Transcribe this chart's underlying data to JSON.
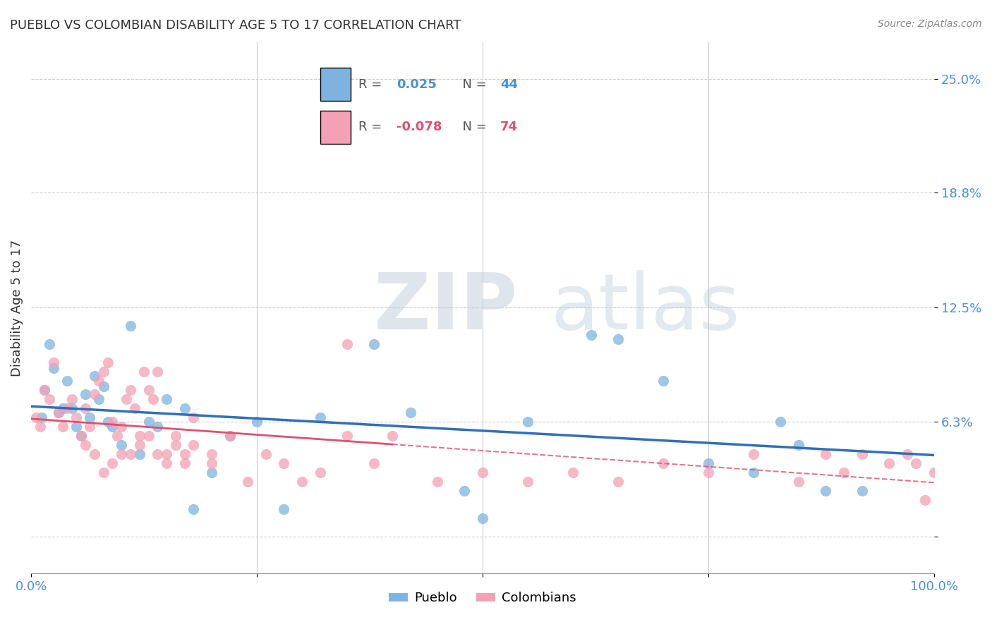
{
  "title": "PUEBLO VS COLOMBIAN DISABILITY AGE 5 TO 17 CORRELATION CHART",
  "source": "Source: ZipAtlas.com",
  "xlabel": "",
  "ylabel": "Disability Age 5 to 17",
  "xlim": [
    0,
    100
  ],
  "ylim": [
    -2,
    27
  ],
  "pueblo_color": "#7eb3e0",
  "colombian_color": "#f4a0b5",
  "pueblo_R": 0.025,
  "pueblo_N": 44,
  "colombian_R": -0.078,
  "colombian_N": 74,
  "pueblo_line_color": "#3070b8",
  "colombian_line_color": "#e05070",
  "pueblo_x": [
    1.2,
    1.5,
    2.0,
    2.5,
    3.0,
    3.5,
    4.0,
    4.5,
    5.0,
    5.5,
    6.0,
    6.5,
    7.0,
    7.5,
    8.0,
    8.5,
    9.0,
    10.0,
    11.0,
    12.0,
    13.0,
    14.0,
    15.0,
    17.0,
    18.0,
    20.0,
    22.0,
    25.0,
    28.0,
    32.0,
    38.0,
    42.0,
    48.0,
    50.0,
    55.0,
    62.0,
    65.0,
    70.0,
    75.0,
    80.0,
    83.0,
    85.0,
    88.0,
    92.0
  ],
  "pueblo_y": [
    6.5,
    8.0,
    10.5,
    9.2,
    6.8,
    7.0,
    8.5,
    7.0,
    6.0,
    5.5,
    7.8,
    6.5,
    8.8,
    7.5,
    8.2,
    6.3,
    6.0,
    5.0,
    11.5,
    4.5,
    6.3,
    6.0,
    7.5,
    7.0,
    1.5,
    3.5,
    5.5,
    6.3,
    1.5,
    6.5,
    10.5,
    6.8,
    2.5,
    1.0,
    6.3,
    11.0,
    10.8,
    8.5,
    4.0,
    3.5,
    6.3,
    5.0,
    2.5,
    2.5
  ],
  "colombian_x": [
    0.5,
    1.0,
    1.5,
    2.0,
    2.5,
    3.0,
    3.5,
    4.0,
    4.5,
    5.0,
    5.5,
    6.0,
    6.5,
    7.0,
    7.5,
    8.0,
    8.5,
    9.0,
    9.5,
    10.0,
    10.5,
    11.0,
    11.5,
    12.0,
    12.5,
    13.0,
    13.5,
    14.0,
    15.0,
    16.0,
    17.0,
    18.0,
    20.0,
    22.0,
    24.0,
    26.0,
    28.0,
    30.0,
    32.0,
    35.0,
    38.0,
    40.0,
    45.0,
    50.0,
    55.0,
    60.0,
    65.0,
    70.0,
    75.0,
    80.0,
    85.0,
    88.0,
    90.0,
    92.0,
    95.0,
    97.0,
    98.0,
    99.0,
    100.0,
    35.0,
    6.0,
    7.0,
    8.0,
    9.0,
    10.0,
    11.0,
    12.0,
    13.0,
    14.0,
    15.0,
    16.0,
    17.0,
    18.0,
    20.0
  ],
  "colombian_y": [
    6.5,
    6.0,
    8.0,
    7.5,
    9.5,
    6.8,
    6.0,
    7.0,
    7.5,
    6.5,
    5.5,
    7.0,
    6.0,
    7.8,
    8.5,
    9.0,
    9.5,
    6.3,
    5.5,
    6.0,
    7.5,
    8.0,
    7.0,
    5.5,
    9.0,
    8.0,
    7.5,
    9.0,
    4.5,
    5.5,
    4.0,
    6.5,
    4.0,
    5.5,
    3.0,
    4.5,
    4.0,
    3.0,
    3.5,
    5.5,
    4.0,
    5.5,
    3.0,
    3.5,
    3.0,
    3.5,
    3.0,
    4.0,
    3.5,
    4.5,
    3.0,
    4.5,
    3.5,
    4.5,
    4.0,
    4.5,
    4.0,
    2.0,
    3.5,
    10.5,
    5.0,
    4.5,
    3.5,
    4.0,
    4.5,
    4.5,
    5.0,
    5.5,
    4.5,
    4.0,
    5.0,
    4.5,
    5.0,
    4.5
  ]
}
